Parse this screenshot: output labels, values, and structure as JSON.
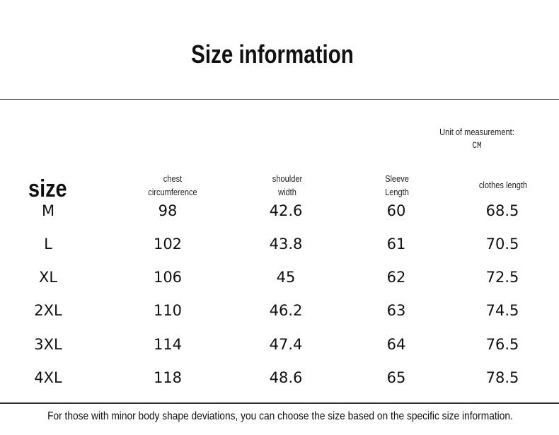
{
  "title": "Size information",
  "unit": {
    "label": "Unit of measurement:",
    "value": "CM"
  },
  "headers": {
    "size": "size",
    "chest": [
      "chest",
      "circumference"
    ],
    "shoulder": [
      "shoulder",
      "width"
    ],
    "sleeve": [
      "Sleeve",
      "Length"
    ],
    "length": "clothes length"
  },
  "rows": [
    {
      "size": "M",
      "chest": "98",
      "shoulder": "42.6",
      "sleeve": "60",
      "length": "68.5"
    },
    {
      "size": "L",
      "chest": "102",
      "shoulder": "43.8",
      "sleeve": "61",
      "length": "70.5"
    },
    {
      "size": "XL",
      "chest": "106",
      "shoulder": "45",
      "sleeve": "62",
      "length": "72.5"
    },
    {
      "size": "2XL",
      "chest": "110",
      "shoulder": "46.2",
      "sleeve": "63",
      "length": "74.5"
    },
    {
      "size": "3XL",
      "chest": "114",
      "shoulder": "47.4",
      "sleeve": "64",
      "length": "76.5"
    },
    {
      "size": "4XL",
      "chest": "118",
      "shoulder": "48.6",
      "sleeve": "65",
      "length": "78.5"
    }
  ],
  "footer": "For those with minor body shape deviations, you can choose the size based on the specific size information."
}
